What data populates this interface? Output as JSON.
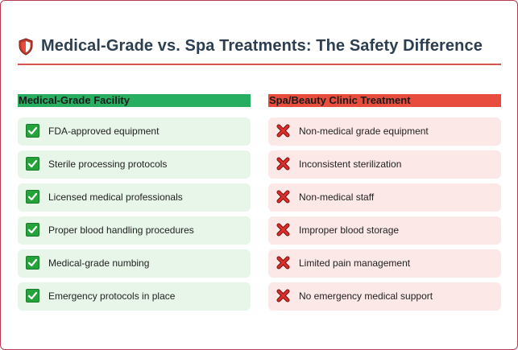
{
  "header": {
    "title": "Medical-Grade vs. Spa Treatments: The Safety Difference",
    "icon": "shield-icon",
    "accent_color": "#d9534f"
  },
  "medical": {
    "heading": "Medical-Grade Facility",
    "heading_color": "#27ae60",
    "item_icon": "check-icon",
    "items": [
      "FDA-approved equipment",
      "Sterile processing protocols",
      "Licensed medical professionals",
      "Proper blood handling procedures",
      "Medical-grade numbing",
      "Emergency protocols in place"
    ]
  },
  "spa": {
    "heading": "Spa/Beauty Clinic Treatment",
    "heading_color": "#e74c3c",
    "item_icon": "cross-icon",
    "items": [
      "Non-medical grade equipment",
      "Inconsistent sterilization",
      "Non-medical staff",
      "Improper blood storage",
      "Limited pain management",
      "No emergency medical support"
    ]
  }
}
